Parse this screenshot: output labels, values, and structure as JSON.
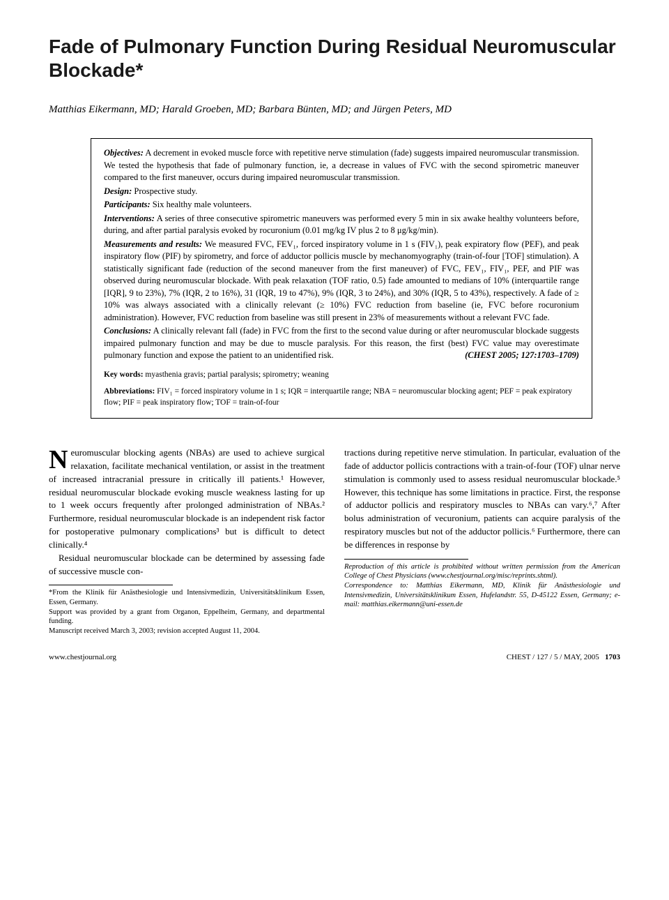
{
  "title": "Fade of Pulmonary Function During Residual Neuromuscular Blockade*",
  "authors": "Matthias Eikermann, MD; Harald Groeben, MD; Barbara Bünten, MD; and Jürgen Peters, MD",
  "abstract": {
    "objectives": {
      "label": "Objectives:",
      "text": "A decrement in evoked muscle force with repetitive nerve stimulation (fade) suggests impaired neuromuscular transmission. We tested the hypothesis that fade of pulmonary function, ie, a decrease in values of FVC with the second spirometric maneuver compared to the first maneuver, occurs during impaired neuromuscular transmission."
    },
    "design": {
      "label": "Design:",
      "text": "Prospective study."
    },
    "participants": {
      "label": "Participants:",
      "text": "Six healthy male volunteers."
    },
    "interventions": {
      "label": "Interventions:",
      "text": "A series of three consecutive spirometric maneuvers was performed every 5 min in six awake healthy volunteers before, during, and after partial paralysis evoked by rocuronium (0.01 mg/kg IV plus 2 to 8 μg/kg/min)."
    },
    "measurements": {
      "label": "Measurements and results:",
      "text": "We measured FVC, FEV₁, forced inspiratory volume in 1 s (FIV₁), peak expiratory flow (PEF), and peak inspiratory flow (PIF) by spirometry, and force of adductor pollicis muscle by mechanomyography (train-of-four [TOF] stimulation). A statistically significant fade (reduction of the second maneuver from the first maneuver) of FVC, FEV₁, FIV₁, PEF, and PIF was observed during neuromuscular blockade. With peak relaxation (TOF ratio, 0.5) fade amounted to medians of 10% (interquartile range [IQR], 9 to 23%), 7% (IQR, 2 to 16%), 31 (IQR, 19 to 47%), 9% (IQR, 3 to 24%), and 30% (IQR, 5 to 43%), respectively. A fade of ≥ 10% was always associated with a clinically relevant (≥ 10%) FVC reduction from baseline (ie, FVC before rocuronium administration). However, FVC reduction from baseline was still present in 23% of measurements without a relevant FVC fade."
    },
    "conclusions": {
      "label": "Conclusions:",
      "text": "A clinically relevant fall (fade) in FVC from the first to the second value during or after neuromuscular blockade suggests impaired pulmonary function and may be due to muscle paralysis. For this reason, the first (best) FVC value may overestimate pulmonary function and expose the patient to an unidentified risk."
    },
    "citation": "(CHEST 2005; 127:1703–1709)",
    "keywords": {
      "label": "Key words:",
      "text": "myasthenia gravis; partial paralysis; spirometry; weaning"
    },
    "abbreviations": {
      "label": "Abbreviations:",
      "text": "FIV₁ = forced inspiratory volume in 1 s; IQR = interquartile range; NBA = neuromuscular blocking agent; PEF = peak expiratory flow; PIF = peak inspiratory flow; TOF = train-of-four"
    }
  },
  "body": {
    "col1": {
      "dropcap": "N",
      "p1_after_dropcap": "euromuscular blocking agents (NBAs) are used to achieve surgical relaxation, facilitate mechanical ventilation, or assist in the treatment of increased intracranial pressure in critically ill patients.¹ However, residual neuromuscular blockade evoking muscle weakness lasting for up to 1 week occurs frequently after prolonged administration of NBAs.² Furthermore, residual neuromuscular blockade is an independent risk factor for postoperative pulmonary complications³ but is difficult to detect clinically.⁴",
      "p2": "Residual neuromuscular blockade can be determined by assessing fade of successive muscle con-",
      "footnotes": "*From the Klinik für Anästhesiologie und Intensivmedizin, Universitätsklinikum Essen, Essen, Germany.\nSupport was provided by a grant from Organon, Eppelheim, Germany, and departmental funding.\nManuscript received March 3, 2003; revision accepted August 11, 2004."
    },
    "col2": {
      "p1": "tractions during repetitive nerve stimulation. In particular, evaluation of the fade of adductor pollicis contractions with a train-of-four (TOF) ulnar nerve stimulation is commonly used to assess residual neuromuscular blockade.⁵ However, this technique has some limitations in practice. First, the response of adductor pollicis and respiratory muscles to NBAs can vary.⁶,⁷ After bolus administration of vecuronium, patients can acquire paralysis of the respiratory muscles but not of the adductor pollicis.⁶ Furthermore, there can be differences in response by",
      "footnotes": "Reproduction of this article is prohibited without written permission from the American College of Chest Physicians (www.chestjournal.org/misc/reprints.shtml).\nCorrespondence to: Matthias Eikermann, MD, Klinik für Anästhesiologie und Intensivmedizin, Universitätsklinikum Essen, Hufelandstr. 55, D-45122 Essen, Germany; e-mail: matthias.eikermann@uni-essen.de"
    }
  },
  "footer": {
    "left": "www.chestjournal.org",
    "right_text": "CHEST / 127 / 5 / MAY, 2005",
    "page": "1703"
  },
  "style": {
    "title_fontsize": 28,
    "title_color": "#1a1a1a",
    "body_fontsize": 13,
    "abstract_fontsize": 12.5,
    "footnote_fontsize": 10.5,
    "background": "#ffffff",
    "text_color": "#000000"
  }
}
